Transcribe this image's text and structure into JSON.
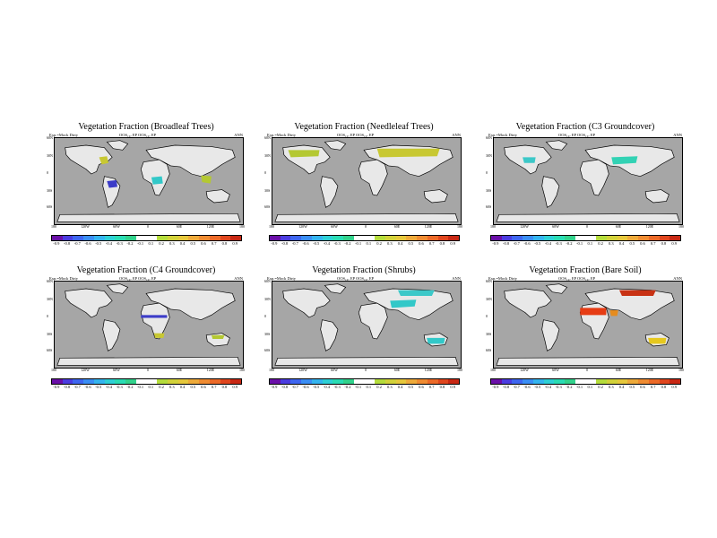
{
  "panels": [
    {
      "title": "Vegetation Fraction (Broadleaf Trees)",
      "left": "Exp.=Mock Dirty",
      "mid": "OOS₁₀₇ EP    OOS₁₀₇ EP",
      "right": "ANN",
      "patches": [
        {
          "region": "eastern North America",
          "color": "#c8c832"
        },
        {
          "region": "Amazon",
          "color": "#3c3cc8"
        },
        {
          "region": "Central Africa",
          "color": "#32c8c8"
        },
        {
          "region": "Southeast Asia",
          "color": "#b4c832"
        }
      ]
    },
    {
      "title": "Vegetation Fraction (Needleleaf Trees)",
      "left": "Exp.=Mock Dirty",
      "mid": "OOS₁₀₇ EP    OOS₁₀₇ EP",
      "right": "ANN",
      "patches": [
        {
          "region": "Boreal Eurasia",
          "color": "#c8c832"
        },
        {
          "region": "Boreal North America",
          "color": "#b4c832"
        }
      ]
    },
    {
      "title": "Vegetation Fraction (C3 Groundcover)",
      "left": "Exp.=Mock Dirty",
      "mid": "OOS₁₀₇ EP    OOS₁₀₇ EP",
      "right": "ANN",
      "patches": [
        {
          "region": "Central Asia",
          "color": "#32d2b4"
        },
        {
          "region": "North America",
          "color": "#3cc8c8"
        }
      ]
    },
    {
      "title": "Vegetation Fraction (C4 Groundcover)",
      "left": "Exp.=Mock Dirty",
      "mid": "OOS₁₀₇ EP    OOS₁₀₇ EP",
      "right": "ANN",
      "patches": [
        {
          "region": "Sahel",
          "color": "#3c3cc8"
        },
        {
          "region": "Southern Africa",
          "color": "#c8c832"
        },
        {
          "region": "Northern Australia",
          "color": "#b4c832"
        }
      ]
    },
    {
      "title": "Vegetation Fraction (Shrubs)",
      "left": "Exp.=Mock Dirty",
      "mid": "OOS₁₀₇ EP    OOS₁₀₇ EP",
      "right": "ANN",
      "patches": [
        {
          "region": "Central Asia",
          "color": "#32c8c8"
        },
        {
          "region": "Siberia",
          "color": "#3cc8c8"
        },
        {
          "region": "Australia",
          "color": "#32c8c8"
        }
      ]
    },
    {
      "title": "Vegetation Fraction (Bare Soil)",
      "left": "Exp.=Mock Dirty",
      "mid": "OOS₁₀₇ EP    OOS₁₀₇ EP",
      "right": "ANN",
      "patches": [
        {
          "region": "Sahara",
          "color": "#e63c14"
        },
        {
          "region": "Arabia",
          "color": "#e68c1e"
        },
        {
          "region": "Siberia",
          "color": "#c83214"
        },
        {
          "region": "Australia",
          "color": "#e6c81e"
        }
      ]
    }
  ],
  "axis": {
    "yticks": [
      "60N",
      "30N",
      "0",
      "30S",
      "60S"
    ],
    "xticks": [
      "180",
      "120W",
      "60W",
      "0",
      "60E",
      "120E",
      "180"
    ]
  },
  "colorbar": {
    "labels": [
      "-0.9",
      "-0.8",
      "-0.7",
      "-0.6",
      "-0.5",
      "-0.4",
      "-0.3",
      "-0.2",
      "-0.1",
      "0.1",
      "0.2",
      "0.3",
      "0.4",
      "0.5",
      "0.6",
      "0.7",
      "0.8",
      "0.9"
    ],
    "colors": [
      "#6a0fa8",
      "#4b3ce0",
      "#3e66f0",
      "#3a8ef5",
      "#34b4ef",
      "#2ed0d6",
      "#2adcb4",
      "#32d28c",
      "#ffffff",
      "#ffffff",
      "#b4dc3c",
      "#d2d23a",
      "#e6c83c",
      "#eeaa3a",
      "#f08c32",
      "#ec6a28",
      "#e0461e",
      "#c82814"
    ]
  }
}
